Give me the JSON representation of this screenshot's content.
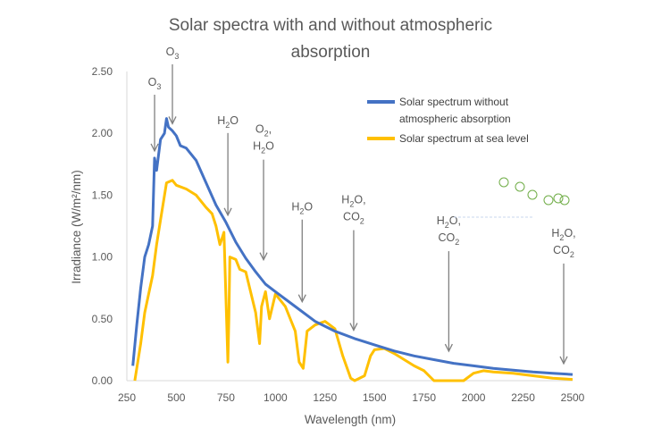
{
  "chart_data": {
    "type": "line",
    "title": "Solar spectra with and without atmospheric absorption",
    "title_lines": [
      "Solar spectra with and without atmospheric",
      "absorption"
    ],
    "xlabel": "Wavelength (nm)",
    "ylabel": "Irradiance (W/m²/nm)",
    "xlim": [
      250,
      2500
    ],
    "ylim": [
      0,
      2.5
    ],
    "x_ticks": [
      250,
      500,
      750,
      1000,
      1250,
      1500,
      1750,
      2000,
      2250,
      2500
    ],
    "y_ticks": [
      "0.00",
      "0.50",
      "1.00",
      "1.50",
      "2.00",
      "2.50"
    ],
    "colors": {
      "series_without": "#4472C4",
      "series_sea_level": "#FFC000",
      "text": "#595959",
      "arrow": "#808080"
    },
    "series": [
      {
        "name": "Solar spectrum without atmospheric absorption",
        "name_lines": [
          "Solar spectrum without",
          "atmospheric absorption"
        ],
        "x": [
          280,
          300,
          320,
          340,
          360,
          380,
          390,
          400,
          420,
          440,
          450,
          460,
          480,
          500,
          520,
          550,
          600,
          650,
          700,
          750,
          800,
          850,
          900,
          950,
          1000,
          1100,
          1200,
          1300,
          1400,
          1500,
          1600,
          1700,
          1800,
          1900,
          2000,
          2100,
          2200,
          2300,
          2400,
          2500
        ],
        "y": [
          0.12,
          0.45,
          0.75,
          1.0,
          1.1,
          1.25,
          1.8,
          1.7,
          1.95,
          2.0,
          2.12,
          2.05,
          2.02,
          1.98,
          1.9,
          1.88,
          1.78,
          1.6,
          1.42,
          1.28,
          1.12,
          0.99,
          0.88,
          0.78,
          0.72,
          0.6,
          0.48,
          0.4,
          0.34,
          0.29,
          0.24,
          0.2,
          0.17,
          0.14,
          0.12,
          0.1,
          0.085,
          0.07,
          0.06,
          0.05
        ]
      },
      {
        "name": "Solar spectrum at sea level",
        "name_lines": [
          "Solar spectrum at sea level"
        ],
        "x": [
          290,
          300,
          320,
          340,
          360,
          380,
          400,
          420,
          450,
          480,
          500,
          550,
          600,
          650,
          680,
          700,
          720,
          740,
          760,
          765,
          770,
          800,
          820,
          850,
          900,
          920,
          930,
          950,
          970,
          1000,
          1050,
          1100,
          1120,
          1140,
          1160,
          1200,
          1250,
          1300,
          1340,
          1380,
          1400,
          1450,
          1480,
          1500,
          1550,
          1600,
          1700,
          1750,
          1800,
          1850,
          1900,
          1950,
          2000,
          2050,
          2100,
          2200,
          2300,
          2400,
          2500
        ],
        "y": [
          0.0,
          0.1,
          0.3,
          0.55,
          0.7,
          0.85,
          1.1,
          1.3,
          1.6,
          1.62,
          1.58,
          1.55,
          1.5,
          1.4,
          1.35,
          1.25,
          1.1,
          1.2,
          0.15,
          0.5,
          1.0,
          0.98,
          0.9,
          0.88,
          0.55,
          0.3,
          0.6,
          0.72,
          0.5,
          0.7,
          0.6,
          0.4,
          0.15,
          0.1,
          0.4,
          0.45,
          0.48,
          0.42,
          0.2,
          0.02,
          0.0,
          0.04,
          0.2,
          0.25,
          0.26,
          0.22,
          0.12,
          0.08,
          0.0,
          0.0,
          0.0,
          0.0,
          0.06,
          0.08,
          0.07,
          0.06,
          0.04,
          0.02,
          0.01
        ]
      }
    ],
    "annotations": [
      {
        "label": "O",
        "sub": "3",
        "x": 390,
        "value": 1.8
      },
      {
        "label": "O",
        "sub": "3",
        "x": 480,
        "value": 2.02
      },
      {
        "label": "H",
        "sub": "2",
        "tail": "O",
        "x": 760,
        "value": 1.28
      },
      {
        "label": "O",
        "sub": "2",
        "tail": ",",
        "label2": "H",
        "sub2": "2",
        "tail2": "O",
        "x": 940,
        "value": 0.92
      },
      {
        "label": "H",
        "sub": "2",
        "tail": "O",
        "x": 1135,
        "value": 0.58
      },
      {
        "label": "H",
        "sub": "2",
        "tail": "O,",
        "label2": "CO",
        "sub2": "2",
        "tail2": "",
        "x": 1395,
        "value": 0.35
      },
      {
        "label": "H",
        "sub": "2",
        "tail": "O,",
        "label2": "CO",
        "sub2": "2",
        "tail2": "",
        "x": 1875,
        "value": 0.18
      },
      {
        "label": "H",
        "sub": "2",
        "tail": "O,",
        "label2": "CO",
        "sub2": "2",
        "tail2": "",
        "x": 2455,
        "value": 0.08
      }
    ]
  }
}
